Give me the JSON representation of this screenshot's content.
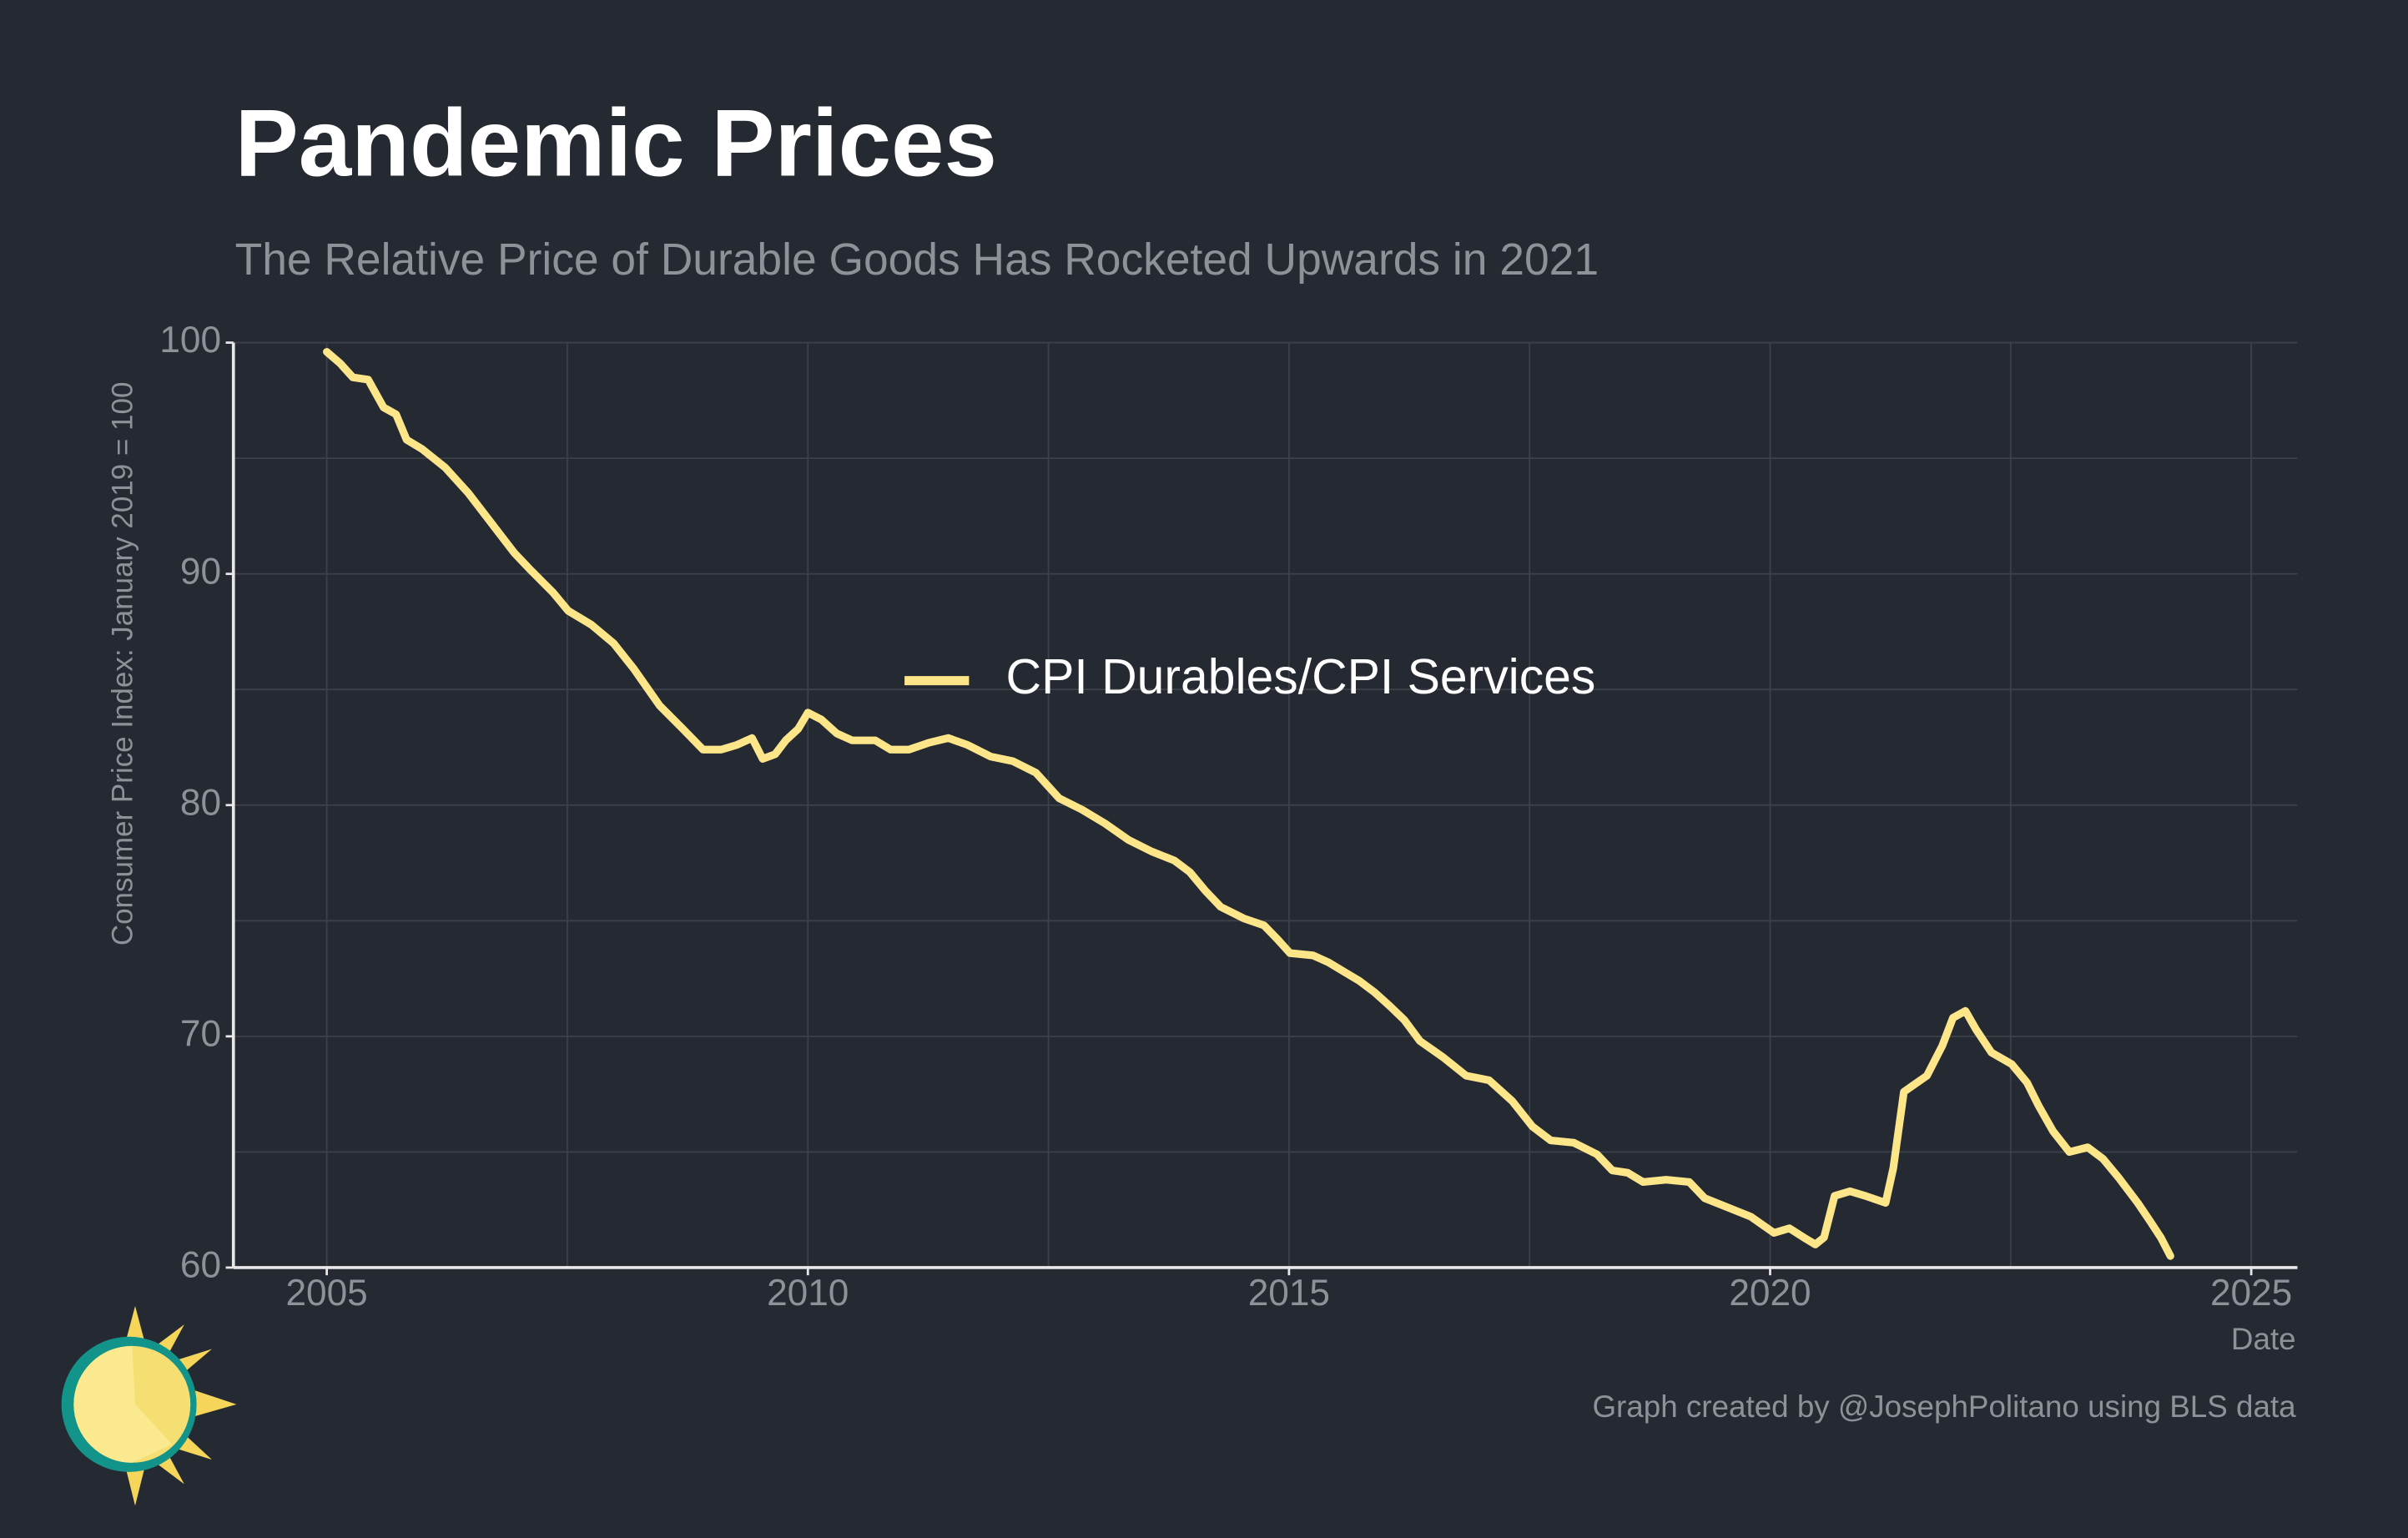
{
  "chart_data": {
    "type": "line",
    "title": "Pandemic Prices",
    "subtitle": "The Relative Price of Durable Goods Has Rocketed Upwards in 2021",
    "ylabel": "Consumer Price Index: January 2019 = 100",
    "xlabel": "Date",
    "credit": "Graph created by @JosephPolitano using BLS data",
    "x": [
      2005.0,
      2005.14,
      2005.27,
      2005.43,
      2005.59,
      2005.72,
      2005.83,
      2005.99,
      2006.23,
      2006.47,
      2006.71,
      2006.95,
      2007.11,
      2007.35,
      2007.51,
      2007.75,
      2007.98,
      2008.19,
      2008.46,
      2008.7,
      2008.91,
      2009.1,
      2009.26,
      2009.42,
      2009.53,
      2009.66,
      2009.77,
      2009.9,
      2010.0,
      2010.14,
      2010.3,
      2010.46,
      2010.7,
      2010.86,
      2011.05,
      2011.26,
      2011.46,
      2011.66,
      2011.9,
      2012.13,
      2012.37,
      2012.61,
      2012.85,
      2013.09,
      2013.33,
      2013.57,
      2013.81,
      2013.97,
      2014.13,
      2014.29,
      2014.53,
      2014.74,
      2014.88,
      2015.01,
      2015.25,
      2015.41,
      2015.57,
      2015.73,
      2015.89,
      2016.05,
      2016.2,
      2016.36,
      2016.6,
      2016.84,
      2017.08,
      2017.32,
      2017.53,
      2017.72,
      2017.96,
      2018.2,
      2018.36,
      2018.52,
      2018.68,
      2018.92,
      2019.16,
      2019.32,
      2019.56,
      2019.8,
      2020.04,
      2020.2,
      2020.35,
      2020.47,
      2020.56,
      2020.67,
      2020.83,
      2020.99,
      2021.2,
      2021.28,
      2021.39,
      2021.63,
      2021.79,
      2021.9,
      2022.03,
      2022.14,
      2022.3,
      2022.51,
      2022.67,
      2022.79,
      2022.94,
      2023.11,
      2023.3,
      2023.46,
      2023.62,
      2023.82,
      2023.95,
      2024.06,
      2024.16
    ],
    "series": [
      {
        "name": "CPI Durables/CPI Services",
        "color": "#fde58a",
        "values": [
          99.6,
          99.1,
          98.5,
          98.4,
          97.2,
          96.9,
          95.8,
          95.4,
          94.6,
          93.5,
          92.2,
          90.9,
          90.2,
          89.2,
          88.4,
          87.8,
          87.0,
          85.9,
          84.3,
          83.3,
          82.4,
          82.4,
          82.6,
          82.9,
          82.0,
          82.2,
          82.8,
          83.3,
          84.0,
          83.7,
          83.1,
          82.8,
          82.8,
          82.4,
          82.4,
          82.7,
          82.9,
          82.6,
          82.1,
          81.9,
          81.4,
          80.3,
          79.8,
          79.2,
          78.5,
          78.0,
          77.6,
          77.1,
          76.3,
          75.6,
          75.1,
          74.8,
          74.2,
          73.6,
          73.5,
          73.2,
          72.8,
          72.4,
          71.9,
          71.3,
          70.7,
          69.8,
          69.1,
          68.3,
          68.1,
          67.2,
          66.1,
          65.5,
          65.4,
          64.9,
          64.2,
          64.1,
          63.7,
          63.8,
          63.7,
          63.0,
          62.6,
          62.2,
          61.5,
          61.7,
          61.3,
          61.0,
          61.3,
          63.1,
          63.3,
          63.1,
          62.8,
          64.3,
          67.6,
          68.3,
          69.6,
          70.8,
          71.1,
          70.3,
          69.3,
          68.8,
          68.0,
          67.0,
          65.9,
          65.0,
          65.2,
          64.7,
          63.9,
          62.8,
          62.0,
          61.3,
          60.5
        ]
      }
    ],
    "xlim": [
      2004.03,
      2025.48
    ],
    "ylim": [
      60,
      100
    ],
    "xticks": [
      2005,
      2010,
      2015,
      2020,
      2025
    ],
    "yticks": [
      60,
      70,
      80,
      90,
      100
    ],
    "minor_xticks": [
      2007.5,
      2012.5,
      2017.5,
      2022.5
    ],
    "minor_yticks": [
      65,
      75,
      85,
      95
    ],
    "grid": true,
    "legend": "center"
  }
}
